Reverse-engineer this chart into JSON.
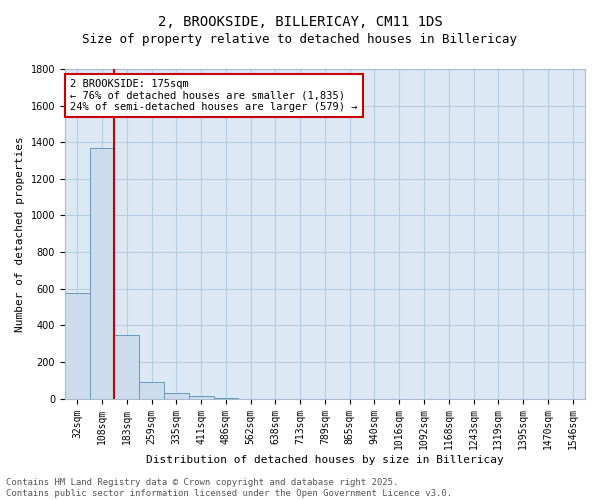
{
  "title": "2, BROOKSIDE, BILLERICAY, CM11 1DS",
  "subtitle": "Size of property relative to detached houses in Billericay",
  "xlabel": "Distribution of detached houses by size in Billericay",
  "ylabel": "Number of detached properties",
  "footer_line1": "Contains HM Land Registry data © Crown copyright and database right 2025.",
  "footer_line2": "Contains public sector information licensed under the Open Government Licence v3.0.",
  "categories": [
    "32sqm",
    "108sqm",
    "183sqm",
    "259sqm",
    "335sqm",
    "411sqm",
    "486sqm",
    "562sqm",
    "638sqm",
    "713sqm",
    "789sqm",
    "865sqm",
    "940sqm",
    "1016sqm",
    "1092sqm",
    "1168sqm",
    "1243sqm",
    "1319sqm",
    "1395sqm",
    "1470sqm",
    "1546sqm"
  ],
  "bar_values": [
    575,
    1370,
    350,
    90,
    30,
    15,
    5,
    0,
    0,
    0,
    0,
    0,
    0,
    0,
    0,
    0,
    0,
    0,
    0,
    0,
    0
  ],
  "bar_color": "#ccdcec",
  "bar_edge_color": "#6699bb",
  "ylim": [
    0,
    1800
  ],
  "yticks": [
    0,
    200,
    400,
    600,
    800,
    1000,
    1200,
    1400,
    1600,
    1800
  ],
  "marker_color": "#cc0000",
  "annotation_line1": "2 BROOKSIDE: 175sqm",
  "annotation_line2": "← 76% of detached houses are smaller (1,835)",
  "annotation_line3": "24% of semi-detached houses are larger (579) →",
  "annotation_box_color": "#cc0000",
  "plot_bg_color": "#dce8f4",
  "background_color": "#ffffff",
  "grid_color": "#b8cede",
  "title_fontsize": 10,
  "subtitle_fontsize": 9,
  "axis_label_fontsize": 8,
  "tick_fontsize": 7,
  "annotation_fontsize": 7.5,
  "footer_fontsize": 6.5
}
